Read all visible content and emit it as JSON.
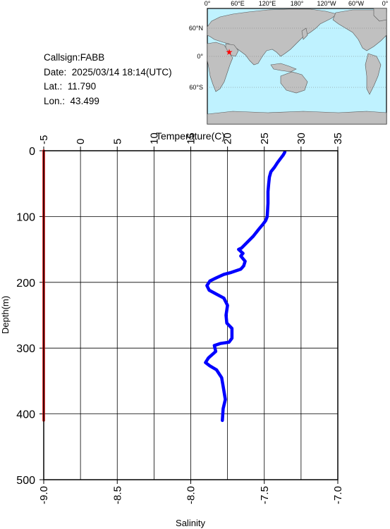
{
  "station": {
    "callsign_label": "Callsign:",
    "callsign": "FABB",
    "date_label": "Date:",
    "date": "2025/03/14 18:14(UTC)",
    "lat_label": "Lat.:",
    "lat": "11.790",
    "lon_label": "Lon.:",
    "lon": "43.499"
  },
  "map": {
    "lon_ticks": [
      "0°",
      "60°E",
      "120°E",
      "180°",
      "120°W",
      "60°W",
      "0°"
    ],
    "lat_ticks": [
      "60°N",
      "0°",
      "60°S"
    ],
    "ocean_color": "#bff2ff",
    "land_color": "#c0c0c0",
    "marker": "red-star-icon",
    "marker_color": "#ff0000"
  },
  "chart_data": {
    "type": "line",
    "title": "",
    "ylabel": "Depth(m)",
    "xlabel_top": "Temperature(C)",
    "xlabel_bottom": "Salinity",
    "y_range": [
      0,
      500
    ],
    "y_inverted": true,
    "y_ticks": [
      0,
      100,
      200,
      300,
      400,
      500
    ],
    "temperature_range": [
      -5,
      35
    ],
    "temperature_ticks": [
      -5,
      0,
      5,
      10,
      15,
      20,
      25,
      30,
      35
    ],
    "salinity_range": [
      -9.0,
      -7.0
    ],
    "salinity_ticks": [
      "-9.0",
      "-8.5",
      "-8.0",
      "-7.5",
      "-7.0"
    ],
    "grid": true,
    "series": [
      {
        "axis": "temperature",
        "color": "#0000ff",
        "points": [
          [
            27.8,
            2
          ],
          [
            27.6,
            6
          ],
          [
            27.2,
            12
          ],
          [
            26.8,
            18
          ],
          [
            26.4,
            25
          ],
          [
            25.9,
            32
          ],
          [
            25.7,
            40
          ],
          [
            25.6,
            50
          ],
          [
            25.5,
            62
          ],
          [
            25.5,
            80
          ],
          [
            25.4,
            100
          ],
          [
            25.2,
            106
          ],
          [
            24.8,
            112
          ],
          [
            24.2,
            120
          ],
          [
            23.5,
            130
          ],
          [
            22.6,
            140
          ],
          [
            21.9,
            148
          ],
          [
            21.5,
            150
          ],
          [
            22.1,
            156
          ],
          [
            21.8,
            160
          ],
          [
            22.4,
            168
          ],
          [
            22.2,
            175
          ],
          [
            21.8,
            180
          ],
          [
            20.5,
            185
          ],
          [
            19.5,
            188
          ],
          [
            18.5,
            193
          ],
          [
            17.6,
            198
          ],
          [
            17.2,
            205
          ],
          [
            17.5,
            212
          ],
          [
            18.5,
            218
          ],
          [
            19.5,
            224
          ],
          [
            20.0,
            235
          ],
          [
            19.8,
            250
          ],
          [
            19.9,
            262
          ],
          [
            20.6,
            270
          ],
          [
            20.6,
            285
          ],
          [
            20.2,
            291
          ],
          [
            19.0,
            293
          ],
          [
            18.2,
            296
          ],
          [
            18.4,
            305
          ],
          [
            17.4,
            315
          ],
          [
            17.0,
            322
          ],
          [
            17.6,
            327
          ],
          [
            18.5,
            333
          ],
          [
            19.2,
            345
          ],
          [
            19.4,
            358
          ],
          [
            19.7,
            378
          ],
          [
            19.4,
            392
          ],
          [
            19.3,
            410
          ]
        ]
      },
      {
        "axis": "salinity",
        "color": "#e00000",
        "points": [
          [
            -9.0,
            0
          ],
          [
            -9.0,
            100
          ],
          [
            -9.0,
            200
          ],
          [
            -9.0,
            300
          ],
          [
            -9.0,
            400
          ],
          [
            -9.0,
            410
          ]
        ]
      }
    ]
  }
}
